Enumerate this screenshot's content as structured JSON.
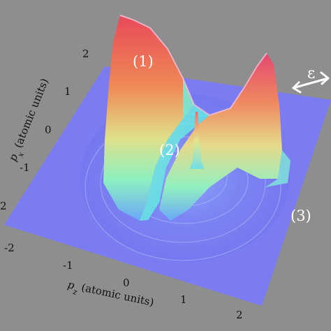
{
  "figure": {
    "region_labels": [
      "(1)",
      "(2)",
      "(3)"
    ],
    "polarization_symbol": "ε",
    "x_axis": {
      "label_var": "p",
      "label_sub": "z",
      "label_text": " (atomic units)",
      "ticks": [
        "-2",
        "-1",
        "0",
        "1",
        "2"
      ]
    },
    "y_axis": {
      "label_var": "p",
      "label_sub": "x",
      "label_text": " (atomic units)",
      "ticks": [
        "2",
        "1",
        "0",
        "-1",
        "-2"
      ],
      "extra_tick": "2"
    }
  },
  "colors": {
    "background": "#8e8e8e",
    "floor": "#7b7cf2",
    "peak_top": "#ec5a4a",
    "mid": "#d9e38a",
    "low": "#59f0e0"
  }
}
